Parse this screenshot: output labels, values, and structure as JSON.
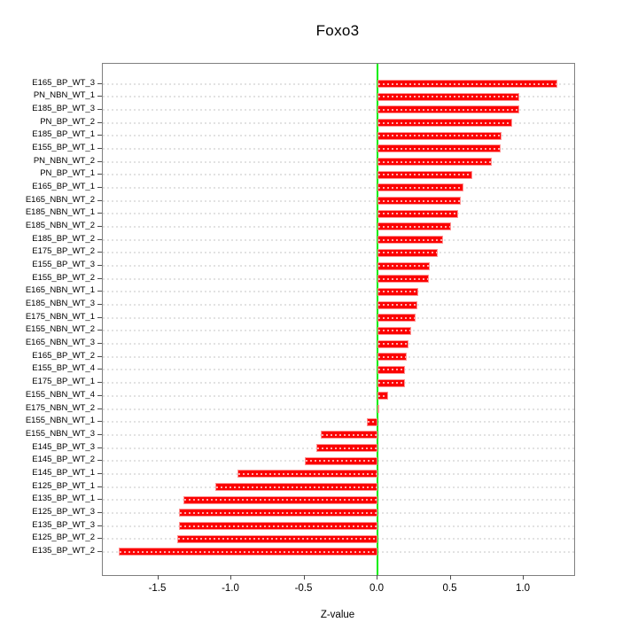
{
  "title": "Foxo3",
  "chart_data": {
    "type": "bar",
    "orientation": "horizontal",
    "title": "Foxo3",
    "xlabel": "Z-value",
    "ylabel": "",
    "legend_position": "none",
    "grid": "dashed horizontal per category",
    "xlim": [
      -1.88,
      1.35
    ],
    "x_ticks": [
      -1.5,
      -1.0,
      -0.5,
      0.0,
      0.5,
      1.0
    ],
    "x_tick_labels": [
      "-1.5",
      "-1.0",
      "-0.5",
      "0.0",
      "0.5",
      "1.0"
    ],
    "categories": [
      "E165_BP_WT_3",
      "PN_NBN_WT_1",
      "E185_BP_WT_3",
      "PN_BP_WT_2",
      "E185_BP_WT_1",
      "E155_BP_WT_1",
      "PN_NBN_WT_2",
      "PN_BP_WT_1",
      "E165_BP_WT_1",
      "E165_NBN_WT_2",
      "E185_NBN_WT_1",
      "E185_NBN_WT_2",
      "E185_BP_WT_2",
      "E175_BP_WT_2",
      "E155_BP_WT_3",
      "E155_BP_WT_2",
      "E165_NBN_WT_1",
      "E185_NBN_WT_3",
      "E175_NBN_WT_1",
      "E155_NBN_WT_2",
      "E165_NBN_WT_3",
      "E165_BP_WT_2",
      "E155_BP_WT_4",
      "E175_BP_WT_1",
      "E155_NBN_WT_4",
      "E175_NBN_WT_2",
      "E155_NBN_WT_1",
      "E155_NBN_WT_3",
      "E145_BP_WT_3",
      "E145_BP_WT_2",
      "E145_BP_WT_1",
      "E125_BP_WT_1",
      "E135_BP_WT_1",
      "E125_BP_WT_3",
      "E135_BP_WT_3",
      "E125_BP_WT_2",
      "E135_BP_WT_2"
    ],
    "values": [
      1.23,
      0.97,
      0.97,
      0.92,
      0.85,
      0.84,
      0.78,
      0.65,
      0.59,
      0.57,
      0.55,
      0.5,
      0.45,
      0.41,
      0.36,
      0.35,
      0.28,
      0.27,
      0.26,
      0.23,
      0.21,
      0.2,
      0.19,
      0.19,
      0.07,
      0.01,
      -0.07,
      -0.39,
      -0.42,
      -0.5,
      -0.96,
      -1.11,
      -1.33,
      -1.36,
      -1.36,
      -1.37,
      -1.77
    ],
    "colors": {
      "bar_fill": "#fb0000",
      "bar_border": "#ff9292",
      "zero_line": "#00ee00",
      "grid_line": "#e2e2e2",
      "box_border": "#7f7f7f",
      "tick": "#4d4d4d",
      "text": "#000000",
      "background": "#ffffff"
    }
  }
}
